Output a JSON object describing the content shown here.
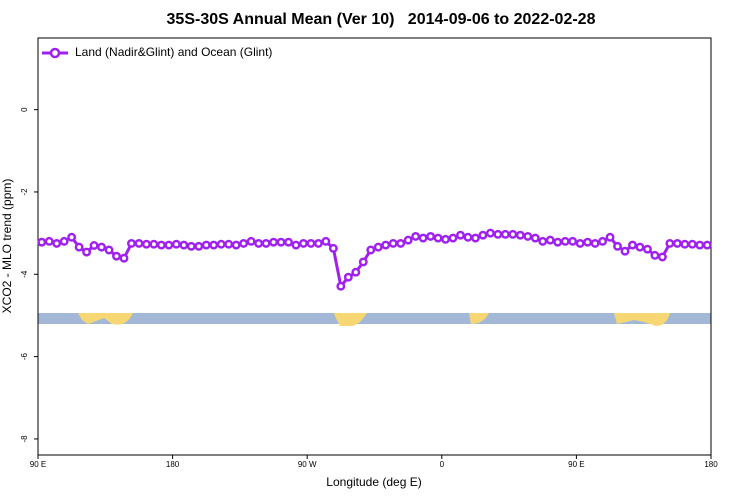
{
  "chart_data": {
    "type": "line",
    "title": "35S-30S Annual Mean (Ver 10)   2014-09-06 to 2022-02-28",
    "xlabel": "Longitude (deg E)",
    "ylabel": "XCO2 - MLO trend (ppm)",
    "xlim": [
      90,
      540
    ],
    "xticks": [
      {
        "value": 90,
        "label": "90 E"
      },
      180,
      {
        "value": 270,
        "label": "90 W"
      },
      {
        "value": 360,
        "label": "0"
      },
      {
        "value": 450,
        "label": "90 E"
      },
      {
        "value": 540,
        "label": "180"
      }
    ],
    "ylim": [
      -8.39,
      1.74
    ],
    "yticks": [
      0,
      -2,
      -4,
      -6,
      -8
    ],
    "grid": false,
    "legend": "upper left",
    "x": [
      92.5,
      97.5,
      102.5,
      107.5,
      112.5,
      117.5,
      122.5,
      127.5,
      132.5,
      137.5,
      142.5,
      147.5,
      152.5,
      157.5,
      162.5,
      167.5,
      172.5,
      177.5,
      182.5,
      187.5,
      192.5,
      197.5,
      202.5,
      207.5,
      212.5,
      217.5,
      222.5,
      227.5,
      232.5,
      237.5,
      242.5,
      247.5,
      252.5,
      257.5,
      262.5,
      267.5,
      272.5,
      277.5,
      282.5,
      287.5,
      292.5,
      297.5,
      302.5,
      307.5,
      312.5,
      317.5,
      322.5,
      327.5,
      332.5,
      337.5,
      342.5,
      347.5,
      352.5,
      357.5,
      362.5,
      367.5,
      372.5,
      377.5,
      382.5,
      387.5,
      392.5,
      397.5,
      402.5,
      407.5,
      412.5,
      417.5,
      422.5,
      427.5,
      432.5,
      437.5,
      442.5,
      447.5,
      452.5,
      457.5,
      462.5,
      467.5,
      472.5,
      477.5,
      482.5,
      487.5,
      492.5,
      497.5,
      502.5,
      507.5,
      512.5,
      517.5,
      522.5,
      527.5,
      532.5,
      537.5
    ],
    "series": [
      {
        "name": "Land (Nadir&Glint) and Ocean (Glint)",
        "color": "#a020f0",
        "values": [
          -3.22,
          -3.2,
          -3.25,
          -3.2,
          -3.1,
          -3.34,
          -3.46,
          -3.3,
          -3.34,
          -3.41,
          -3.56,
          -3.61,
          -3.25,
          -3.25,
          -3.27,
          -3.27,
          -3.29,
          -3.29,
          -3.27,
          -3.29,
          -3.32,
          -3.32,
          -3.29,
          -3.29,
          -3.27,
          -3.27,
          -3.29,
          -3.25,
          -3.2,
          -3.25,
          -3.25,
          -3.22,
          -3.22,
          -3.22,
          -3.29,
          -3.25,
          -3.25,
          -3.25,
          -3.2,
          -3.37,
          -4.29,
          -4.07,
          -3.95,
          -3.7,
          -3.41,
          -3.34,
          -3.29,
          -3.25,
          -3.25,
          -3.17,
          -3.08,
          -3.12,
          -3.08,
          -3.12,
          -3.15,
          -3.12,
          -3.05,
          -3.1,
          -3.12,
          -3.05,
          -3.0,
          -3.03,
          -3.03,
          -3.03,
          -3.05,
          -3.08,
          -3.12,
          -3.2,
          -3.17,
          -3.22,
          -3.2,
          -3.2,
          -3.25,
          -3.22,
          -3.25,
          -3.2,
          -3.1,
          -3.32,
          -3.44,
          -3.29,
          -3.34,
          -3.39,
          -3.54,
          -3.58,
          -3.25,
          -3.25,
          -3.27,
          -3.27,
          -3.29,
          -3.29
        ]
      }
    ]
  }
}
